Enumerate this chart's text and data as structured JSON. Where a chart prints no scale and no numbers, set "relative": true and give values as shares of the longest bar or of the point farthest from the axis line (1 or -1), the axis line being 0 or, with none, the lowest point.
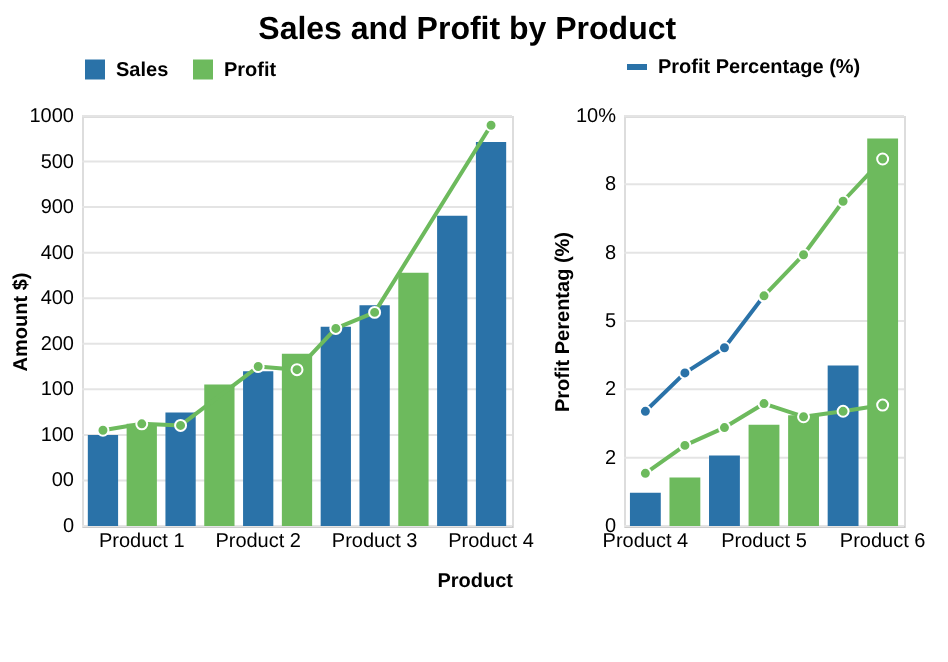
{
  "chart_data": [
    {
      "type": "bar",
      "relative": true,
      "title": "Sales and Profit by Product",
      "xlabel": "Product",
      "ylabel": "Amount $)",
      "legend": "top",
      "grid": "y",
      "categories": [
        null,
        "Product 1",
        null,
        null,
        "Product 2",
        null,
        null,
        "Product 3",
        null,
        null,
        "Product 4"
      ],
      "annotations": [
        "1000",
        "500",
        "900",
        "400",
        "400",
        "200",
        "100",
        "100",
        "00",
        "0"
      ],
      "series": [
        {
          "name": "Sales",
          "color": "#2a72a8",
          "values": [
            0.227,
            null,
            0.283,
            null,
            0.386,
            null,
            0.497,
            0.551,
            null,
            0.774,
            0.958
          ]
        },
        {
          "name": "Profit",
          "color": "#6dba5d",
          "values": [
            null,
            0.255,
            null,
            0.353,
            null,
            0.43,
            null,
            null,
            0.632,
            null,
            null
          ]
        },
        {
          "type": "line",
          "color": "#6dba5d",
          "marker": "circle",
          "values": [
            0.239,
            0.255,
            0.251,
            null,
            0.398,
            0.39,
            0.493,
            0.533,
            null,
            null,
            1
          ]
        }
      ]
    },
    {
      "type": "bar",
      "relative": true,
      "ylabel": "Profit Perentag (%)",
      "legend": "top",
      "grid": "y",
      "categories": [
        "Product 4",
        null,
        null,
        "Product 5",
        null,
        null,
        "Product 6"
      ],
      "annotations": [
        "10%",
        "8",
        "8",
        "5",
        "2",
        "2",
        "0"
      ],
      "series": [
        {
          "color": "#2a72a8",
          "values": [
            0.086,
            null,
            0.182,
            null,
            null,
            0.414,
            null
          ]
        },
        {
          "color": "#6dba5d",
          "values": [
            null,
            0.125,
            null,
            0.261,
            0.286,
            null,
            1
          ]
        },
        {
          "name": "Profit Percentage (%)",
          "type": "line",
          "color": "#2a72a8",
          "marker": "circle",
          "values": [
            0.296,
            0.395,
            0.46,
            0.594,
            null,
            null,
            null
          ]
        },
        {
          "type": "line",
          "color": "#6dba5d",
          "marker": "circle",
          "values": [
            null,
            null,
            null,
            0.594,
            0.7,
            0.838,
            0.947
          ]
        },
        {
          "type": "line",
          "color": "#6dba5d",
          "marker": "circle",
          "values": [
            0.136,
            0.208,
            0.254,
            0.316,
            0.282,
            0.296,
            0.312
          ]
        }
      ]
    }
  ]
}
